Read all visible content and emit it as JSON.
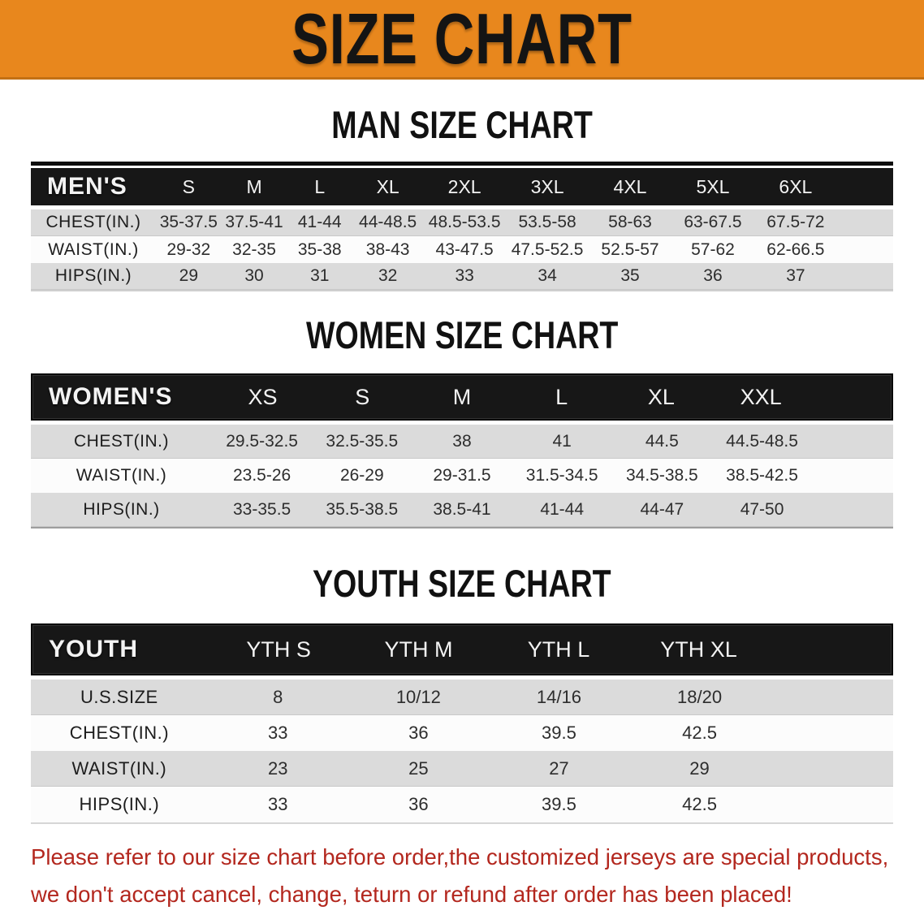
{
  "banner": {
    "title": "SIZE CHART"
  },
  "colors": {
    "banner_bg": "#E8871D",
    "banner_text": "#141414",
    "bar_bg": "#171717",
    "bar_text": "#F3F3F3",
    "row_shade": "#DBDBDB",
    "row_light": "#FCFCFC",
    "heading_text": "#111111",
    "label_text": "#1D1D1D",
    "value_text": "#2D2D2D",
    "footer_text": "#B3271E"
  },
  "sections": [
    {
      "id": "men",
      "heading": "MAN SIZE CHART",
      "table": {
        "group_label": "MEN'S",
        "columns": [
          "S",
          "M",
          "L",
          "XL",
          "2XL",
          "3XL",
          "4XL",
          "5XL",
          "6XL"
        ],
        "rows": [
          {
            "label": "CHEST(IN.)",
            "values": [
              "35-37.5",
              "37.5-41",
              "41-44",
              "44-48.5",
              "48.5-53.5",
              "53.5-58",
              "58-63",
              "63-67.5",
              "67.5-72"
            ]
          },
          {
            "label": "WAIST(IN.)",
            "values": [
              "29-32",
              "32-35",
              "35-38",
              "38-43",
              "43-47.5",
              "47.5-52.5",
              "52.5-57",
              "57-62",
              "62-66.5"
            ]
          },
          {
            "label": "HIPS(IN.)",
            "values": [
              "29",
              "30",
              "31",
              "32",
              "33",
              "34",
              "35",
              "36",
              "37"
            ]
          }
        ]
      }
    },
    {
      "id": "women",
      "heading": "WOMEN SIZE CHART",
      "table": {
        "group_label": "WOMEN'S",
        "columns": [
          "XS",
          "S",
          "M",
          "L",
          "XL",
          "XXL"
        ],
        "rows": [
          {
            "label": "CHEST(IN.)",
            "values": [
              "29.5-32.5",
              "32.5-35.5",
              "38",
              "41",
              "44.5",
              "44.5-48.5"
            ]
          },
          {
            "label": "WAIST(IN.)",
            "values": [
              "23.5-26",
              "26-29",
              "29-31.5",
              "31.5-34.5",
              "34.5-38.5",
              "38.5-42.5"
            ]
          },
          {
            "label": "HIPS(IN.)",
            "values": [
              "33-35.5",
              "35.5-38.5",
              "38.5-41",
              "41-44",
              "44-47",
              "47-50"
            ]
          }
        ]
      }
    },
    {
      "id": "youth",
      "heading": "YOUTH SIZE CHART",
      "table": {
        "group_label": "YOUTH",
        "columns": [
          "YTH S",
          "YTH M",
          "YTH L",
          "YTH XL"
        ],
        "rows": [
          {
            "label": "U.S.SIZE",
            "values": [
              "8",
              "10/12",
              "14/16",
              "18/20"
            ]
          },
          {
            "label": "CHEST(IN.)",
            "values": [
              "33",
              "36",
              "39.5",
              "42.5"
            ]
          },
          {
            "label": "WAIST(IN.)",
            "values": [
              "23",
              "25",
              "27",
              "29"
            ]
          },
          {
            "label": "HIPS(IN.)",
            "values": [
              "33",
              "36",
              "39.5",
              "42.5"
            ]
          }
        ]
      }
    }
  ],
  "footer": {
    "line1": "Please refer to our size chart before order,the customized jerseys are special products,",
    "line2": "we don't accept cancel, change, teturn or refund after order has been placed!"
  }
}
